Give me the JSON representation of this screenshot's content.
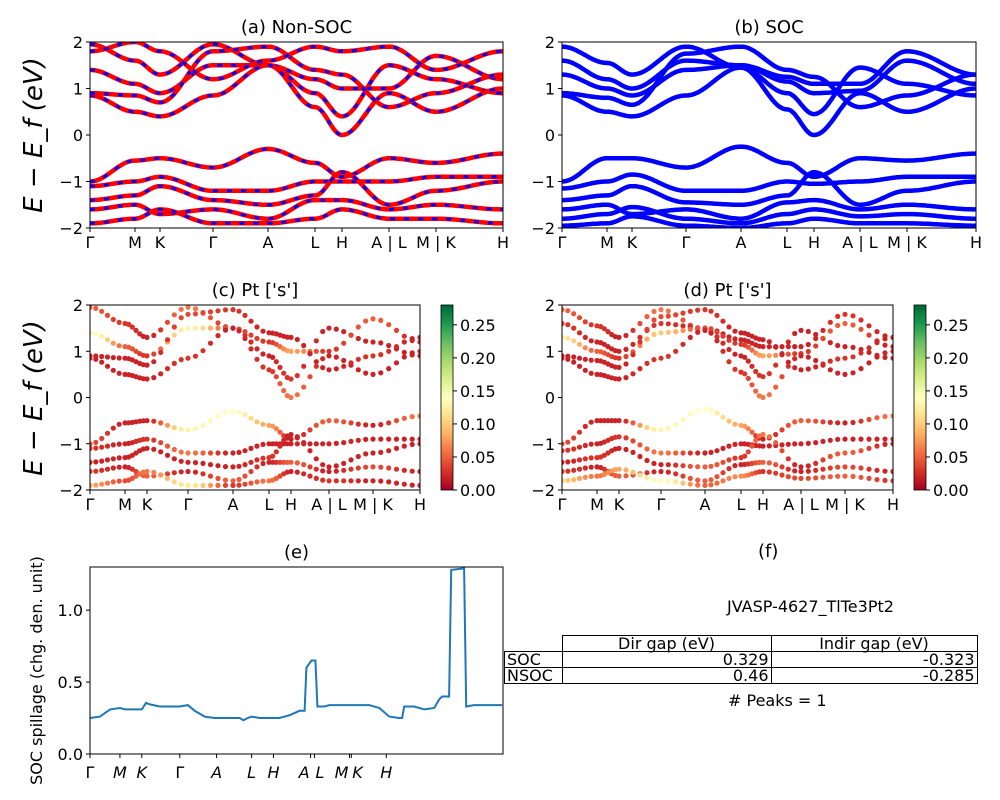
{
  "ylabel": "E − E_f (eV)",
  "kpoint_labels": [
    "Γ",
    "M",
    "K",
    "Γ",
    "A",
    "L",
    "H",
    "A | L",
    "M | K",
    "H"
  ],
  "chart_data": [
    {
      "id": "a",
      "type": "line",
      "title": "(a) Non-SOC",
      "ylabel": "E − E_f (eV)",
      "ylim": [
        -2,
        2
      ],
      "yticks": [
        "−2",
        "−1",
        "0",
        "1",
        "2"
      ],
      "xticklabels": [
        "Γ",
        "M",
        "K",
        "Γ",
        "A",
        "L",
        "H",
        "A | L",
        "M | K",
        "H"
      ],
      "line_colors": [
        "#ff0000",
        "#0000ff"
      ],
      "bands": [
        [
          1.95,
          1.6,
          1.3,
          1.95,
          1.5,
          0.9,
          0.4,
          1.5,
          1.2,
          0.9
        ],
        [
          1.4,
          1.1,
          0.9,
          1.5,
          1.5,
          1.2,
          1.0,
          1.0,
          1.7,
          1.2
        ],
        [
          0.85,
          0.5,
          0.4,
          0.85,
          1.5,
          0.6,
          0.0,
          0.9,
          0.5,
          1.0
        ],
        [
          0.9,
          0.85,
          0.7,
          1.8,
          1.9,
          1.4,
          1.3,
          0.6,
          0.9,
          1.3
        ],
        [
          1.8,
          2.0,
          1.8,
          1.2,
          1.6,
          1.9,
          1.8,
          1.9,
          1.4,
          1.8
        ],
        [
          -1.0,
          -0.55,
          -0.5,
          -0.7,
          -0.3,
          -0.6,
          -0.9,
          -0.5,
          -0.6,
          -0.4
        ],
        [
          -1.1,
          -1.0,
          -0.9,
          -1.2,
          -1.2,
          -1.0,
          -1.0,
          -1.0,
          -0.9,
          -0.9
        ],
        [
          -1.4,
          -1.3,
          -1.1,
          -1.4,
          -1.5,
          -1.3,
          -0.8,
          -1.5,
          -1.2,
          -1.0
        ],
        [
          -1.6,
          -1.5,
          -1.7,
          -1.6,
          -1.8,
          -1.4,
          -1.4,
          -1.6,
          -1.5,
          -1.6
        ],
        [
          -1.9,
          -1.8,
          -1.6,
          -1.9,
          -1.9,
          -1.8,
          -1.6,
          -1.8,
          -1.8,
          -1.9
        ]
      ]
    },
    {
      "id": "b",
      "type": "line",
      "title": "(b) SOC",
      "ylim": [
        -2,
        2
      ],
      "yticks": [
        "−2",
        "−1",
        "0",
        "1",
        "2"
      ],
      "xticklabels": [
        "Γ",
        "M",
        "K",
        "Γ",
        "A",
        "L",
        "H",
        "A | L",
        "M | K",
        "H"
      ],
      "line_colors": [
        "#0000ff"
      ],
      "bands": [
        [
          1.9,
          1.55,
          1.3,
          1.9,
          1.45,
          0.9,
          0.45,
          1.45,
          1.1,
          0.85
        ],
        [
          1.6,
          1.2,
          1.0,
          1.6,
          1.5,
          1.25,
          1.1,
          1.1,
          1.8,
          1.3
        ],
        [
          1.3,
          1.0,
          0.85,
          1.4,
          1.5,
          1.15,
          0.9,
          0.95,
          1.6,
          1.1
        ],
        [
          0.85,
          0.5,
          0.4,
          0.85,
          1.45,
          0.55,
          0.0,
          0.9,
          0.5,
          1.0
        ],
        [
          0.9,
          0.8,
          0.65,
          1.75,
          1.9,
          1.4,
          1.25,
          0.6,
          0.85,
          1.3
        ],
        [
          -1.0,
          -0.5,
          -0.5,
          -0.7,
          -0.25,
          -0.6,
          -0.9,
          -0.5,
          -0.55,
          -0.4
        ],
        [
          -1.15,
          -1.0,
          -0.85,
          -1.2,
          -1.2,
          -1.0,
          -1.05,
          -1.0,
          -0.9,
          -0.9
        ],
        [
          -1.4,
          -1.3,
          -1.1,
          -1.45,
          -1.5,
          -1.3,
          -0.8,
          -1.5,
          -1.2,
          -1.0
        ],
        [
          -1.6,
          -1.5,
          -1.7,
          -1.6,
          -1.8,
          -1.45,
          -1.4,
          -1.6,
          -1.5,
          -1.6
        ],
        [
          -1.8,
          -1.7,
          -1.55,
          -1.8,
          -1.9,
          -1.7,
          -1.6,
          -1.75,
          -1.7,
          -1.8
        ],
        [
          -1.95,
          -1.9,
          -1.75,
          -1.95,
          -2.0,
          -1.9,
          -1.8,
          -1.9,
          -1.9,
          -1.95
        ]
      ]
    },
    {
      "id": "c",
      "type": "scatter",
      "title": "(c)  Pt ['s']",
      "ylim": [
        -2,
        2
      ],
      "yticks": [
        "−2",
        "−1",
        "0",
        "1",
        "2"
      ],
      "xticklabels": [
        "Γ",
        "M",
        "K",
        "Γ",
        "A",
        "L",
        "H",
        "A | L",
        "M | K",
        "H"
      ],
      "colormap": "RdYlGn",
      "clim": [
        0,
        0.28
      ],
      "colorbar_ticks": [
        "0.00",
        "0.05",
        "0.10",
        "0.15",
        "0.20",
        "0.25"
      ],
      "bands": [
        [
          1.95,
          1.6,
          1.3,
          1.95,
          1.5,
          0.9,
          0.4,
          1.5,
          1.2,
          0.9
        ],
        [
          1.4,
          1.1,
          0.9,
          1.5,
          1.5,
          1.2,
          1.0,
          1.0,
          1.7,
          1.2
        ],
        [
          0.85,
          0.5,
          0.4,
          0.85,
          1.5,
          0.6,
          0.0,
          0.9,
          0.5,
          1.0
        ],
        [
          0.9,
          0.85,
          0.7,
          1.8,
          1.9,
          1.4,
          1.3,
          0.6,
          0.9,
          1.3
        ],
        [
          -1.0,
          -0.55,
          -0.5,
          -0.7,
          -0.3,
          -0.6,
          -0.9,
          -0.5,
          -0.6,
          -0.4
        ],
        [
          -1.1,
          -1.0,
          -0.9,
          -1.2,
          -1.2,
          -1.0,
          -1.0,
          -1.0,
          -0.9,
          -0.9
        ],
        [
          -1.4,
          -1.3,
          -1.1,
          -1.4,
          -1.5,
          -1.3,
          -0.8,
          -1.5,
          -1.2,
          -1.0
        ],
        [
          -1.6,
          -1.5,
          -1.7,
          -1.6,
          -1.8,
          -1.4,
          -1.4,
          -1.6,
          -1.5,
          -1.6
        ],
        [
          -1.9,
          -1.8,
          -1.6,
          -1.9,
          -1.9,
          -1.8,
          -1.6,
          -1.8,
          -1.8,
          -1.9
        ]
      ],
      "weights": [
        [
          0.05,
          0.03,
          0.02,
          0.06,
          0.03,
          0.02,
          0.03,
          0.02,
          0.02,
          0.02
        ],
        [
          0.15,
          0.05,
          0.03,
          0.13,
          0.04,
          0.03,
          0.08,
          0.03,
          0.05,
          0.02
        ],
        [
          0.02,
          0.02,
          0.02,
          0.03,
          0.02,
          0.03,
          0.06,
          0.02,
          0.02,
          0.02
        ],
        [
          0.02,
          0.02,
          0.02,
          0.04,
          0.03,
          0.02,
          0.02,
          0.02,
          0.03,
          0.02
        ],
        [
          0.04,
          0.02,
          0.02,
          0.13,
          0.14,
          0.08,
          0.02,
          0.05,
          0.02,
          0.06
        ],
        [
          0.03,
          0.02,
          0.03,
          0.06,
          0.02,
          0.02,
          0.02,
          0.02,
          0.02,
          0.02
        ],
        [
          0.02,
          0.02,
          0.02,
          0.02,
          0.02,
          0.03,
          0.02,
          0.02,
          0.02,
          0.02
        ],
        [
          0.03,
          0.02,
          0.05,
          0.02,
          0.05,
          0.02,
          0.05,
          0.02,
          0.04,
          0.02
        ],
        [
          0.08,
          0.04,
          0.06,
          0.12,
          0.03,
          0.06,
          0.02,
          0.03,
          0.02,
          0.02
        ]
      ]
    },
    {
      "id": "d",
      "type": "scatter",
      "title": "(d) Pt ['s']",
      "ylim": [
        -2,
        2
      ],
      "yticks": [
        "−2",
        "−1",
        "0",
        "1",
        "2"
      ],
      "xticklabels": [
        "Γ",
        "M",
        "K",
        "Γ",
        "A",
        "L",
        "H",
        "A | L",
        "M | K",
        "H"
      ],
      "colormap": "RdYlGn",
      "clim": [
        0,
        0.28
      ],
      "colorbar_ticks": [
        "0.00",
        "0.05",
        "0.10",
        "0.15",
        "0.20",
        "0.25"
      ],
      "bands": [
        [
          1.9,
          1.55,
          1.3,
          1.9,
          1.45,
          0.9,
          0.45,
          1.45,
          1.1,
          0.85
        ],
        [
          1.6,
          1.2,
          1.0,
          1.6,
          1.5,
          1.25,
          1.1,
          1.1,
          1.8,
          1.3
        ],
        [
          1.3,
          1.0,
          0.85,
          1.4,
          1.5,
          1.15,
          0.9,
          0.95,
          1.6,
          1.1
        ],
        [
          0.85,
          0.5,
          0.4,
          0.85,
          1.45,
          0.55,
          0.0,
          0.9,
          0.5,
          1.0
        ],
        [
          0.9,
          0.8,
          0.65,
          1.75,
          1.9,
          1.4,
          1.25,
          0.6,
          0.85,
          1.3
        ],
        [
          -1.0,
          -0.5,
          -0.5,
          -0.7,
          -0.25,
          -0.6,
          -0.9,
          -0.5,
          -0.55,
          -0.4
        ],
        [
          -1.15,
          -1.0,
          -0.85,
          -1.2,
          -1.2,
          -1.0,
          -1.05,
          -1.0,
          -0.9,
          -0.9
        ],
        [
          -1.4,
          -1.3,
          -1.1,
          -1.45,
          -1.5,
          -1.3,
          -0.8,
          -1.5,
          -1.2,
          -1.0
        ],
        [
          -1.6,
          -1.5,
          -1.7,
          -1.6,
          -1.8,
          -1.45,
          -1.4,
          -1.6,
          -1.5,
          -1.6
        ],
        [
          -1.8,
          -1.7,
          -1.55,
          -1.8,
          -1.9,
          -1.7,
          -1.6,
          -1.75,
          -1.7,
          -1.8
        ]
      ],
      "weights": [
        [
          0.05,
          0.03,
          0.02,
          0.06,
          0.03,
          0.02,
          0.03,
          0.02,
          0.02,
          0.02
        ],
        [
          0.03,
          0.02,
          0.02,
          0.03,
          0.02,
          0.02,
          0.02,
          0.02,
          0.03,
          0.02
        ],
        [
          0.12,
          0.05,
          0.03,
          0.1,
          0.04,
          0.03,
          0.08,
          0.03,
          0.05,
          0.02
        ],
        [
          0.02,
          0.02,
          0.02,
          0.03,
          0.02,
          0.03,
          0.06,
          0.02,
          0.02,
          0.02
        ],
        [
          0.02,
          0.02,
          0.02,
          0.04,
          0.03,
          0.02,
          0.02,
          0.02,
          0.03,
          0.02
        ],
        [
          0.04,
          0.02,
          0.02,
          0.13,
          0.14,
          0.08,
          0.02,
          0.05,
          0.02,
          0.06
        ],
        [
          0.03,
          0.02,
          0.03,
          0.06,
          0.02,
          0.02,
          0.02,
          0.02,
          0.02,
          0.02
        ],
        [
          0.02,
          0.03,
          0.02,
          0.02,
          0.05,
          0.03,
          0.06,
          0.02,
          0.05,
          0.02
        ],
        [
          0.03,
          0.02,
          0.05,
          0.02,
          0.05,
          0.02,
          0.05,
          0.02,
          0.04,
          0.02
        ],
        [
          0.1,
          0.06,
          0.08,
          0.14,
          0.05,
          0.07,
          0.03,
          0.04,
          0.05,
          0.03
        ]
      ]
    },
    {
      "id": "e",
      "type": "line",
      "title": "(e)",
      "ylabel": "SOC spillage (chg. den. unit)",
      "ylim": [
        0,
        1.3
      ],
      "yticks": [
        "0.0",
        "0.5",
        "1.0"
      ],
      "xlim": [
        0,
        138
      ],
      "xticks": [
        0,
        10,
        17.3,
        30,
        42.3,
        54,
        61.3,
        73.7,
        75,
        86.7,
        87.3,
        99
      ],
      "xticklabels": [
        "Γ",
        "M",
        "K",
        "Γ",
        "A",
        "L",
        "H",
        "A",
        "L",
        "M",
        "K",
        "H"
      ],
      "line_color": "#1f77b4",
      "x": [
        0,
        3.3,
        6.7,
        10,
        11.7,
        17.3,
        18.7,
        20,
        23.3,
        30,
        32.7,
        35,
        38.3,
        41.7,
        50,
        51.3,
        52.7,
        54,
        56.7,
        63.3,
        66.7,
        70,
        71.7,
        72.3,
        74,
        75.3,
        76,
        78.3,
        80,
        93.3,
        96.7,
        100,
        103.3,
        104.3,
        105,
        108.3,
        111.7,
        115,
        116.7,
        117.7,
        120,
        120.7,
        125,
        125.7,
        128.3,
        137.7
      ],
      "y": [
        0.25,
        0.26,
        0.31,
        0.32,
        0.31,
        0.31,
        0.355,
        0.345,
        0.33,
        0.33,
        0.34,
        0.3,
        0.26,
        0.25,
        0.25,
        0.235,
        0.25,
        0.26,
        0.25,
        0.25,
        0.27,
        0.3,
        0.3,
        0.6,
        0.65,
        0.65,
        0.33,
        0.33,
        0.34,
        0.34,
        0.32,
        0.26,
        0.25,
        0.25,
        0.33,
        0.33,
        0.31,
        0.32,
        0.38,
        0.4,
        0.4,
        1.28,
        1.29,
        0.33,
        0.34,
        0.34
      ]
    }
  ],
  "info_panel": {
    "title": "(f)",
    "material": "JVASP-4627_TlTe3Pt2",
    "table": {
      "headers": [
        "Dir gap (eV)",
        "Indir gap (eV)"
      ],
      "rows": [
        {
          "label": "SOC",
          "dir": "0.329",
          "indir": "-0.323"
        },
        {
          "label": "NSOC",
          "dir": "0.46",
          "indir": "-0.285"
        }
      ]
    },
    "peaks": "# Peaks = 1"
  }
}
